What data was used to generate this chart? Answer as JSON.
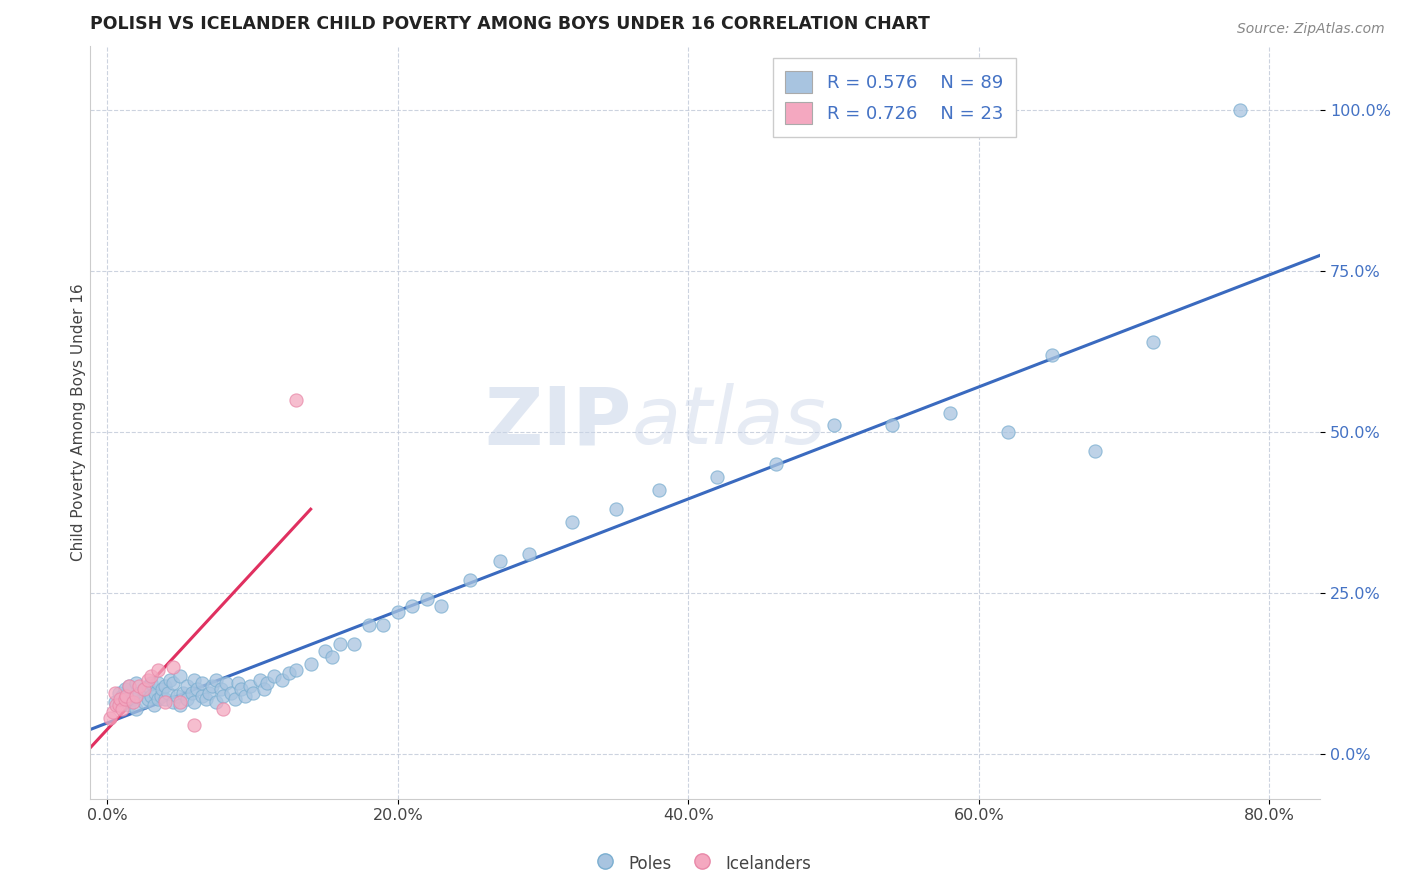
{
  "title": "POLISH VS ICELANDER CHILD POVERTY AMONG BOYS UNDER 16 CORRELATION CHART",
  "source": "Source: ZipAtlas.com",
  "ylabel": "Child Poverty Among Boys Under 16",
  "watermark_zip": "ZIP",
  "watermark_atlas": "atlas",
  "poles_R": 0.576,
  "poles_N": 89,
  "icelanders_R": 0.726,
  "icelanders_N": 23,
  "xlim": [
    -0.012,
    0.835
  ],
  "ylim": [
    -0.07,
    1.1
  ],
  "xticks": [
    0.0,
    0.2,
    0.4,
    0.6,
    0.8
  ],
  "xticklabels": [
    "0.0%",
    "20.0%",
    "40.0%",
    "60.0%",
    "80.0%"
  ],
  "yticks": [
    0.0,
    0.25,
    0.5,
    0.75,
    1.0
  ],
  "yticklabels": [
    "0.0%",
    "25.0%",
    "50.0%",
    "75.0%",
    "100.0%"
  ],
  "poles_color": "#a8c4e0",
  "poles_edge_color": "#7aaed0",
  "icelanders_color": "#f4a8c0",
  "icelanders_edge_color": "#e888a8",
  "poles_line_color": "#3a6abf",
  "icelanders_line_color": "#e03060",
  "background_color": "#ffffff",
  "grid_color": "#c0c8d8",
  "title_color": "#222222",
  "ylabel_color": "#444444",
  "ytick_color": "#4472c4",
  "xtick_color": "#444444",
  "source_color": "#888888",
  "poles_x": [
    0.005,
    0.008,
    0.01,
    0.012,
    0.015,
    0.015,
    0.018,
    0.02,
    0.02,
    0.022,
    0.025,
    0.025,
    0.028,
    0.028,
    0.03,
    0.03,
    0.032,
    0.033,
    0.035,
    0.035,
    0.037,
    0.038,
    0.04,
    0.04,
    0.042,
    0.043,
    0.045,
    0.045,
    0.048,
    0.05,
    0.05,
    0.052,
    0.055,
    0.055,
    0.058,
    0.06,
    0.06,
    0.062,
    0.065,
    0.065,
    0.068,
    0.07,
    0.072,
    0.075,
    0.075,
    0.078,
    0.08,
    0.082,
    0.085,
    0.088,
    0.09,
    0.092,
    0.095,
    0.098,
    0.1,
    0.105,
    0.108,
    0.11,
    0.115,
    0.12,
    0.125,
    0.13,
    0.14,
    0.15,
    0.155,
    0.16,
    0.17,
    0.18,
    0.19,
    0.2,
    0.21,
    0.22,
    0.23,
    0.25,
    0.27,
    0.29,
    0.32,
    0.35,
    0.38,
    0.42,
    0.46,
    0.5,
    0.54,
    0.58,
    0.62,
    0.65,
    0.68,
    0.72,
    0.78
  ],
  "poles_y": [
    0.08,
    0.095,
    0.09,
    0.1,
    0.075,
    0.105,
    0.085,
    0.07,
    0.11,
    0.095,
    0.08,
    0.1,
    0.085,
    0.105,
    0.09,
    0.11,
    0.075,
    0.095,
    0.085,
    0.11,
    0.09,
    0.1,
    0.085,
    0.105,
    0.095,
    0.115,
    0.08,
    0.11,
    0.09,
    0.075,
    0.12,
    0.095,
    0.085,
    0.105,
    0.095,
    0.08,
    0.115,
    0.1,
    0.09,
    0.11,
    0.085,
    0.095,
    0.105,
    0.08,
    0.115,
    0.1,
    0.09,
    0.11,
    0.095,
    0.085,
    0.11,
    0.1,
    0.09,
    0.105,
    0.095,
    0.115,
    0.1,
    0.11,
    0.12,
    0.115,
    0.125,
    0.13,
    0.14,
    0.16,
    0.15,
    0.17,
    0.17,
    0.2,
    0.2,
    0.22,
    0.23,
    0.24,
    0.23,
    0.27,
    0.3,
    0.31,
    0.36,
    0.38,
    0.41,
    0.43,
    0.45,
    0.51,
    0.51,
    0.53,
    0.5,
    0.62,
    0.47,
    0.64,
    1.0
  ],
  "poles_size": [
    120,
    80,
    80,
    80,
    80,
    80,
    80,
    80,
    80,
    80,
    80,
    80,
    80,
    80,
    80,
    80,
    80,
    80,
    80,
    80,
    80,
    80,
    80,
    80,
    80,
    80,
    80,
    80,
    80,
    80,
    80,
    80,
    80,
    80,
    80,
    80,
    80,
    80,
    80,
    80,
    80,
    80,
    80,
    80,
    80,
    80,
    80,
    80,
    80,
    80,
    80,
    80,
    80,
    80,
    80,
    80,
    80,
    80,
    80,
    80,
    80,
    80,
    80,
    80,
    80,
    80,
    80,
    80,
    80,
    80,
    80,
    80,
    80,
    80,
    80,
    80,
    80,
    80,
    80,
    80,
    80,
    80,
    80,
    80,
    80,
    80,
    80,
    80,
    80
  ],
  "icelanders_x": [
    0.002,
    0.004,
    0.005,
    0.006,
    0.008,
    0.009,
    0.01,
    0.012,
    0.013,
    0.015,
    0.018,
    0.02,
    0.022,
    0.025,
    0.028,
    0.03,
    0.035,
    0.04,
    0.045,
    0.05,
    0.06,
    0.08,
    0.13
  ],
  "icelanders_y": [
    0.055,
    0.065,
    0.095,
    0.075,
    0.075,
    0.085,
    0.07,
    0.085,
    0.09,
    0.105,
    0.08,
    0.09,
    0.105,
    0.1,
    0.115,
    0.12,
    0.13,
    0.08,
    0.135,
    0.08,
    0.045,
    0.07,
    0.55
  ],
  "poles_line_x_start": -0.012,
  "poles_line_x_end": 0.835,
  "icelanders_line_x_start": -0.012,
  "icelanders_line_x_end": 0.14
}
